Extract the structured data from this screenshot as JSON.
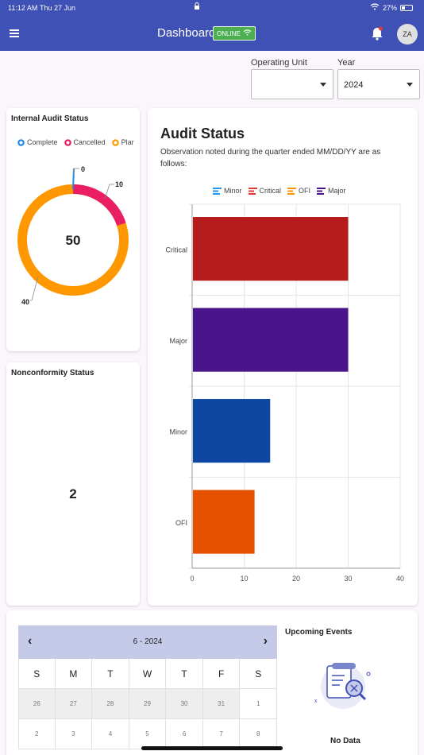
{
  "status_bar": {
    "time": "11:12 AM",
    "date": "Thu 27 Jun",
    "battery": "27%"
  },
  "app_bar": {
    "title": "Dashboard",
    "online_badge": "ONLINE",
    "avatar_initials": "ZA"
  },
  "filters": {
    "operating_unit": {
      "label": "Operating Unit",
      "value": ""
    },
    "year": {
      "label": "Year",
      "value": "2024"
    }
  },
  "internal_audit": {
    "title": "Internal Audit Status",
    "legend": [
      {
        "label": "Complete",
        "color": "#1e88e5"
      },
      {
        "label": "Cancelled",
        "color": "#e91e63"
      },
      {
        "label": "Plar",
        "color": "#ff9800"
      }
    ],
    "center_value": "50",
    "slices": [
      {
        "label": "0",
        "value": 0,
        "color": "#1e88e5"
      },
      {
        "label": "10",
        "value": 10,
        "color": "#e91e63"
      },
      {
        "label": "40",
        "value": 40,
        "color": "#ff9800"
      }
    ]
  },
  "nonconformity": {
    "title": "Nonconformity Status",
    "value": "2"
  },
  "audit_status": {
    "title": "Audit Status",
    "subtitle": "Observation noted during the quarter ended MM/DD/YY are as follows:"
  },
  "chart_data": {
    "type": "bar",
    "orientation": "horizontal",
    "categories": [
      "Critical",
      "Major",
      "Minor",
      "OFI"
    ],
    "values": [
      30,
      30,
      15,
      12
    ],
    "colors": [
      "#b71c1c",
      "#4a148c",
      "#0d47a1",
      "#e65100"
    ],
    "legend": [
      {
        "name": "Minor",
        "color": "#2196f3"
      },
      {
        "name": "Critical",
        "color": "#e53935"
      },
      {
        "name": "OFI",
        "color": "#ff9800"
      },
      {
        "name": "Major",
        "color": "#4a148c"
      }
    ],
    "xlim": [
      0,
      40
    ],
    "xticks": [
      "0",
      "10",
      "20",
      "30",
      "40"
    ],
    "grid": true,
    "legend_position": "top"
  },
  "calendar": {
    "title": "6 - 2024",
    "prev": "‹",
    "next": "›",
    "weekdays": [
      "S",
      "M",
      "T",
      "W",
      "T",
      "F",
      "S"
    ],
    "row1": [
      "26",
      "27",
      "28",
      "29",
      "30",
      "31",
      "1"
    ],
    "row2": [
      "2",
      "3",
      "4",
      "5",
      "6",
      "7",
      "8"
    ]
  },
  "events": {
    "title": "Upcoming Events",
    "empty_text": "No Data"
  }
}
